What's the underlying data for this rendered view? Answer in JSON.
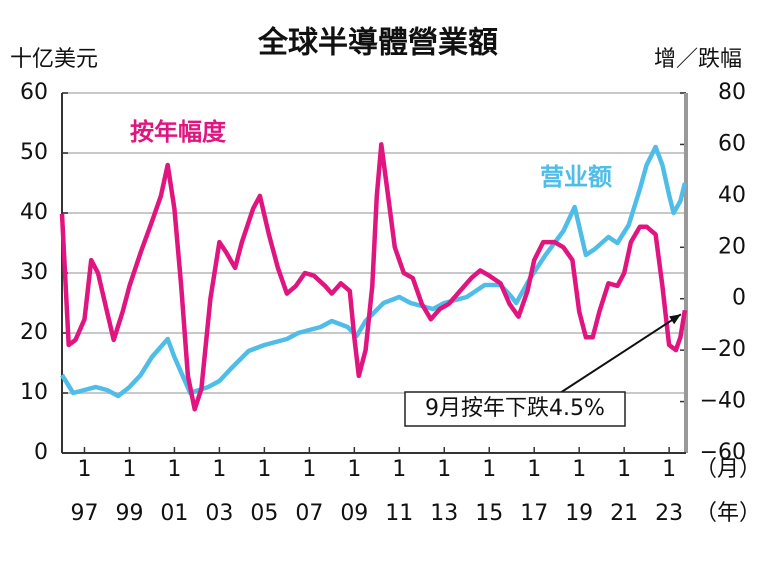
{
  "chart_data": {
    "type": "line",
    "title": "全球半導體營業額",
    "y_label": "十亿美元",
    "y2_label": "增／跌幅",
    "x_month_label": "1",
    "x_unit_month": "（月）",
    "x_unit_year": "（年）",
    "annotation": "9月按年下跌4.5%",
    "xlim": [
      1996,
      2023.75
    ],
    "xticks": [
      {
        "value": 1997,
        "label": "97"
      },
      {
        "value": 1999,
        "label": "99"
      },
      {
        "value": 2001,
        "label": "01"
      },
      {
        "value": 2003,
        "label": "03"
      },
      {
        "value": 2005,
        "label": "05"
      },
      {
        "value": 2007,
        "label": "07"
      },
      {
        "value": 2009,
        "label": "09"
      },
      {
        "value": 2011,
        "label": "11"
      },
      {
        "value": 2013,
        "label": "13"
      },
      {
        "value": 2015,
        "label": "15"
      },
      {
        "value": 2017,
        "label": "17"
      },
      {
        "value": 2019,
        "label": "19"
      },
      {
        "value": 2021,
        "label": "21"
      },
      {
        "value": 2023,
        "label": "23"
      }
    ],
    "ylim": [
      0,
      60
    ],
    "yticks": [
      0,
      10,
      20,
      30,
      40,
      50,
      60
    ],
    "y2lim": [
      -60,
      80
    ],
    "y2ticks": [
      {
        "value": -60,
        "label": "−60"
      },
      {
        "value": -40,
        "label": "−40"
      },
      {
        "value": -20,
        "label": "−20"
      },
      0,
      20,
      40,
      60,
      80
    ],
    "grid": true,
    "series": [
      {
        "name": "营业额",
        "color": "#4fbde8",
        "axis": "y",
        "x": [
          1996.0,
          1996.5,
          1997.0,
          1997.5,
          1998.0,
          1998.5,
          1999.0,
          1999.5,
          2000.0,
          2000.7,
          2001.0,
          2001.7,
          2002.5,
          2003.0,
          2003.5,
          2004.3,
          2005.0,
          2006.0,
          2006.5,
          2007.5,
          2008.0,
          2008.7,
          2009.1,
          2009.5,
          2010.3,
          2011.0,
          2011.5,
          2012.5,
          2013.0,
          2014.0,
          2014.8,
          2015.5,
          2016.0,
          2016.2,
          2016.8,
          2017.5,
          2018.3,
          2018.8,
          2019.3,
          2019.7,
          2020.3,
          2020.7,
          2021.2,
          2021.7,
          2022.0,
          2022.4,
          2022.7,
          2023.0,
          2023.2,
          2023.5,
          2023.7
        ],
        "values": [
          13,
          10,
          10.5,
          11,
          10.5,
          9.5,
          11,
          13,
          16,
          19,
          16,
          10,
          11,
          12,
          14,
          17,
          18,
          19,
          20,
          21,
          22,
          21,
          19.5,
          22,
          25,
          26,
          25,
          24,
          25,
          26,
          28,
          28,
          26,
          25,
          29,
          33,
          37,
          41,
          33,
          34,
          36,
          35,
          38,
          44,
          48,
          51,
          48,
          43,
          40,
          42,
          45
        ]
      },
      {
        "name": "按年幅度",
        "color": "#e0157f",
        "axis": "y2",
        "x": [
          1996.0,
          1996.3,
          1996.6,
          1997.0,
          1997.3,
          1997.6,
          1998.0,
          1998.3,
          1998.7,
          1999.0,
          1999.5,
          2000.0,
          2000.4,
          2000.7,
          2001.0,
          2001.3,
          2001.6,
          2001.9,
          2002.2,
          2002.6,
          2003.0,
          2003.3,
          2003.7,
          2004.0,
          2004.5,
          2004.8,
          2005.2,
          2005.6,
          2006.0,
          2006.4,
          2006.8,
          2007.2,
          2007.7,
          2008.0,
          2008.4,
          2008.8,
          2009.0,
          2009.2,
          2009.5,
          2009.8,
          2010.0,
          2010.2,
          2010.5,
          2010.8,
          2011.2,
          2011.6,
          2012.0,
          2012.4,
          2012.8,
          2013.2,
          2013.7,
          2014.2,
          2014.6,
          2015.0,
          2015.5,
          2015.9,
          2016.3,
          2016.7,
          2017.0,
          2017.4,
          2017.9,
          2018.3,
          2018.7,
          2019.0,
          2019.3,
          2019.6,
          2019.9,
          2020.3,
          2020.7,
          2021.0,
          2021.3,
          2021.7,
          2022.0,
          2022.4,
          2022.7,
          2023.0,
          2023.3,
          2023.5,
          2023.7
        ],
        "values": [
          33,
          -18,
          -16,
          -8,
          15,
          10,
          -5,
          -16,
          -5,
          5,
          18,
          30,
          40,
          52,
          35,
          5,
          -30,
          -43,
          -35,
          0,
          22,
          18,
          12,
          22,
          35,
          40,
          25,
          12,
          2,
          5,
          10,
          9,
          5,
          2,
          6,
          3,
          -15,
          -30,
          -20,
          5,
          40,
          60,
          40,
          20,
          10,
          8,
          -2,
          -8,
          -4,
          -2,
          3,
          8,
          11,
          9,
          6,
          -2,
          -7,
          3,
          15,
          22,
          22,
          20,
          15,
          -5,
          -15,
          -15,
          -5,
          6,
          5,
          10,
          22,
          28,
          28,
          25,
          5,
          -18,
          -20,
          -15,
          -4.5
        ]
      }
    ]
  }
}
